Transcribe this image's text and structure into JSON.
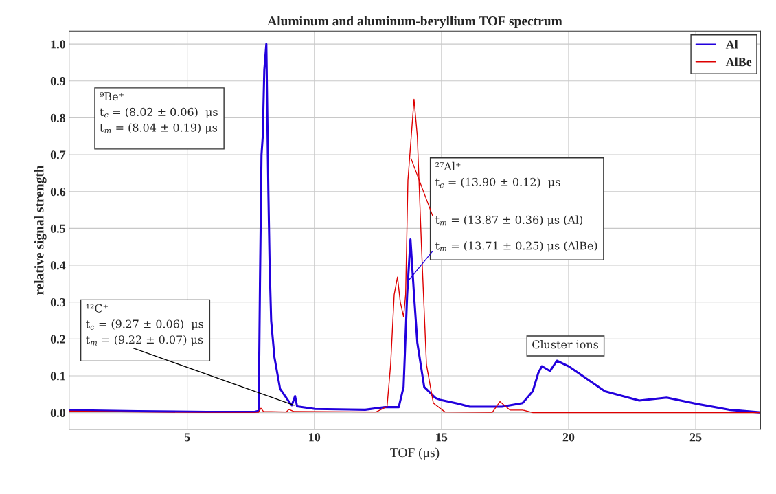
{
  "chart_data": {
    "type": "line",
    "title": "Aluminum and aluminum-beryllium TOF spectrum",
    "xlabel": "TOF (μs)",
    "ylabel": "relative signal strength",
    "series": [
      {
        "name": "Al",
        "color": "#2200dd",
        "x": [
          0.38,
          3.05,
          5.76,
          7.65,
          7.81,
          7.86,
          7.92,
          7.97,
          8.03,
          8.11,
          8.19,
          8.24,
          8.3,
          8.43,
          8.65,
          9.0,
          9.11,
          9.24,
          9.32,
          10.03,
          12.0,
          12.43,
          12.78,
          13.32,
          13.51,
          13.65,
          13.78,
          13.92,
          14.05,
          14.32,
          14.76,
          14.95,
          15.68,
          16.11,
          17.38,
          18.19,
          18.59,
          18.81,
          18.95,
          19.27,
          19.54,
          20.0,
          21.43,
          22.78,
          23.86,
          25.03,
          26.3,
          27.5
        ],
        "values": [
          0.007,
          0.004,
          0.002,
          0.002,
          0.005,
          0.35,
          0.7,
          0.75,
          0.93,
          1.0,
          0.6,
          0.4,
          0.25,
          0.15,
          0.065,
          0.03,
          0.02,
          0.045,
          0.017,
          0.01,
          0.008,
          0.012,
          0.015,
          0.015,
          0.07,
          0.32,
          0.47,
          0.32,
          0.19,
          0.07,
          0.04,
          0.035,
          0.024,
          0.016,
          0.016,
          0.026,
          0.058,
          0.108,
          0.126,
          0.113,
          0.141,
          0.126,
          0.058,
          0.033,
          0.041,
          0.024,
          0.008,
          0.001
        ]
      },
      {
        "name": "AlBe",
        "color": "#dd0000",
        "x": [
          0.38,
          3.0,
          7.8,
          7.9,
          8.0,
          8.9,
          9.0,
          9.2,
          12.43,
          12.86,
          13.0,
          13.14,
          13.27,
          13.38,
          13.51,
          13.59,
          13.68,
          13.92,
          14.05,
          14.22,
          14.41,
          14.68,
          15.14,
          17.0,
          17.3,
          17.7,
          18.2,
          18.6,
          27.5
        ],
        "values": [
          0.004,
          0.002,
          0.001,
          0.012,
          0.003,
          0.002,
          0.009,
          0.003,
          0.002,
          0.017,
          0.13,
          0.32,
          0.368,
          0.3,
          0.26,
          0.32,
          0.63,
          0.85,
          0.75,
          0.44,
          0.13,
          0.026,
          0.002,
          0.001,
          0.03,
          0.007,
          0.007,
          0.0,
          0.0
        ]
      }
    ],
    "xlim": [
      0.35,
      27.55
    ],
    "ylim": [
      -0.045,
      1.035
    ],
    "xticks": [
      5,
      10,
      15,
      20,
      25
    ],
    "yticks": [
      {
        "value": 0,
        "label": "0.0"
      },
      {
        "value": 0.1,
        "label": "0.1"
      },
      {
        "value": 0.2,
        "label": "0.2"
      },
      {
        "value": 0.3,
        "label": "0.3"
      },
      {
        "value": 0.4,
        "label": "0.4"
      },
      {
        "value": 0.5,
        "label": "0.5"
      },
      {
        "value": 0.6,
        "label": "0.6"
      },
      {
        "value": 0.7,
        "label": "0.7"
      },
      {
        "value": 0.8,
        "label": "0.8"
      },
      {
        "value": 0.9,
        "label": "0.9"
      },
      {
        "value": 1,
        "label": "1.0"
      }
    ],
    "grid": true,
    "legend": "top right",
    "marker": "none",
    "line_style": "solid",
    "annotations": [
      "⁹Be⁺\nt$_{c}$ = (8.02 ± 0.06)  μs\nt$_{m}$ = (8.04 ± 0.19) μs",
      {
        "text": "¹²C⁺\nt$_{c}$ = (9.27 ± 0.06)  μs\nt$_{m}$ = (9.22 ± 0.07) μs",
        "x": 9.2,
        "y": 0.02
      },
      "²⁷Al⁺\nt$_{c}$ = (13.90 ± 0.12)  μs",
      {
        "text": "t$_{m}$ = (13.87 ± 0.36) μs (Al)",
        "x": 13.8,
        "y": 0.69
      },
      {
        "text": "t$_{m}$ = (13.71 ± 0.25) μs (AlBe)",
        "x": 13.72,
        "y": 0.36
      },
      "Cluster ions"
    ]
  }
}
